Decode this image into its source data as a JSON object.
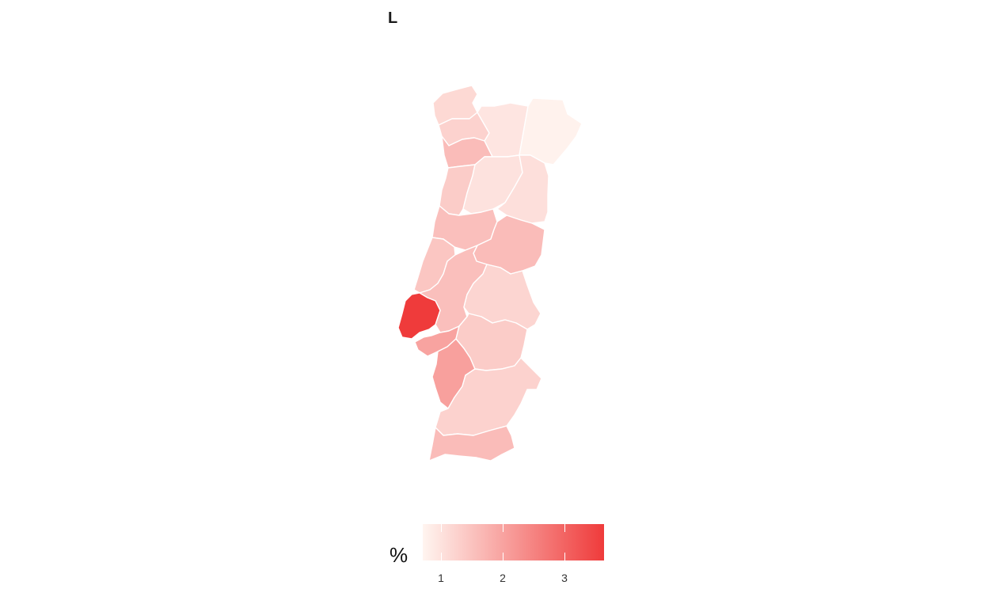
{
  "title": "L",
  "legend": {
    "title": "%",
    "ticks": [
      {
        "label": "1",
        "value": 1
      },
      {
        "label": "2",
        "value": 2
      },
      {
        "label": "3",
        "value": 3
      }
    ],
    "range": [
      0.7,
      3.65
    ],
    "color_low": "#fff5f0",
    "color_high": "#ef3b3b"
  },
  "regions": [
    {
      "id": "viana-do-castelo",
      "value": 1.15
    },
    {
      "id": "braga",
      "value": 1.25
    },
    {
      "id": "vila-real",
      "value": 0.95
    },
    {
      "id": "braganca",
      "value": 0.75
    },
    {
      "id": "porto",
      "value": 1.6
    },
    {
      "id": "aveiro",
      "value": 1.35
    },
    {
      "id": "viseu",
      "value": 1.0
    },
    {
      "id": "guarda",
      "value": 1.05
    },
    {
      "id": "coimbra",
      "value": 1.55
    },
    {
      "id": "leiria",
      "value": 1.45
    },
    {
      "id": "castelo-branco",
      "value": 1.6
    },
    {
      "id": "santarem",
      "value": 1.55
    },
    {
      "id": "portalegre",
      "value": 1.2
    },
    {
      "id": "lisboa",
      "value": 3.65
    },
    {
      "id": "setubal-north",
      "value": 2.0
    },
    {
      "id": "setubal",
      "value": 2.05
    },
    {
      "id": "evora",
      "value": 1.35
    },
    {
      "id": "beja",
      "value": 1.25
    },
    {
      "id": "faro",
      "value": 1.6
    }
  ]
}
